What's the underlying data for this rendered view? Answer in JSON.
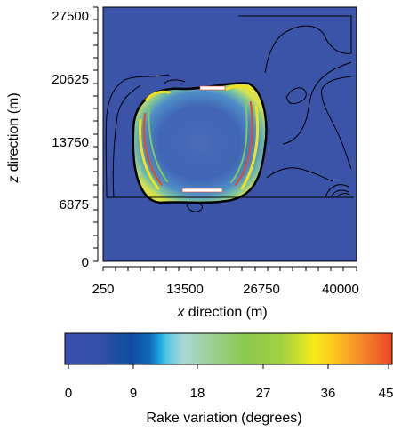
{
  "chart_data": {
    "type": "heatmap",
    "title": "",
    "xlabel_var": "x",
    "xlabel_rest": " direction (m)",
    "ylabel_var": "z",
    "ylabel_rest": " direction (m)",
    "xlim": [
      250,
      40000
    ],
    "ylim": [
      0,
      27500
    ],
    "xticks": [
      "250",
      "13500",
      "26750",
      "40000"
    ],
    "yticks": [
      "0",
      "6875",
      "13750",
      "20625",
      "27500"
    ],
    "colorbar": {
      "label": "Rake variation (degrees)",
      "range": [
        0,
        45
      ],
      "ticks": [
        "0",
        "9",
        "18",
        "27",
        "36",
        "45"
      ]
    },
    "background_value": 0,
    "colors": {
      "background": "#3c54a8",
      "low": "#2b4aa0",
      "mid": "#57b8e0",
      "green": "#8ccc4e",
      "yellow": "#f5ec1e",
      "high": "#e83a1e",
      "contour": "#000000"
    },
    "features": [
      "high rake variation ring around rupture patch",
      "contour lines of slip outside patch"
    ]
  }
}
